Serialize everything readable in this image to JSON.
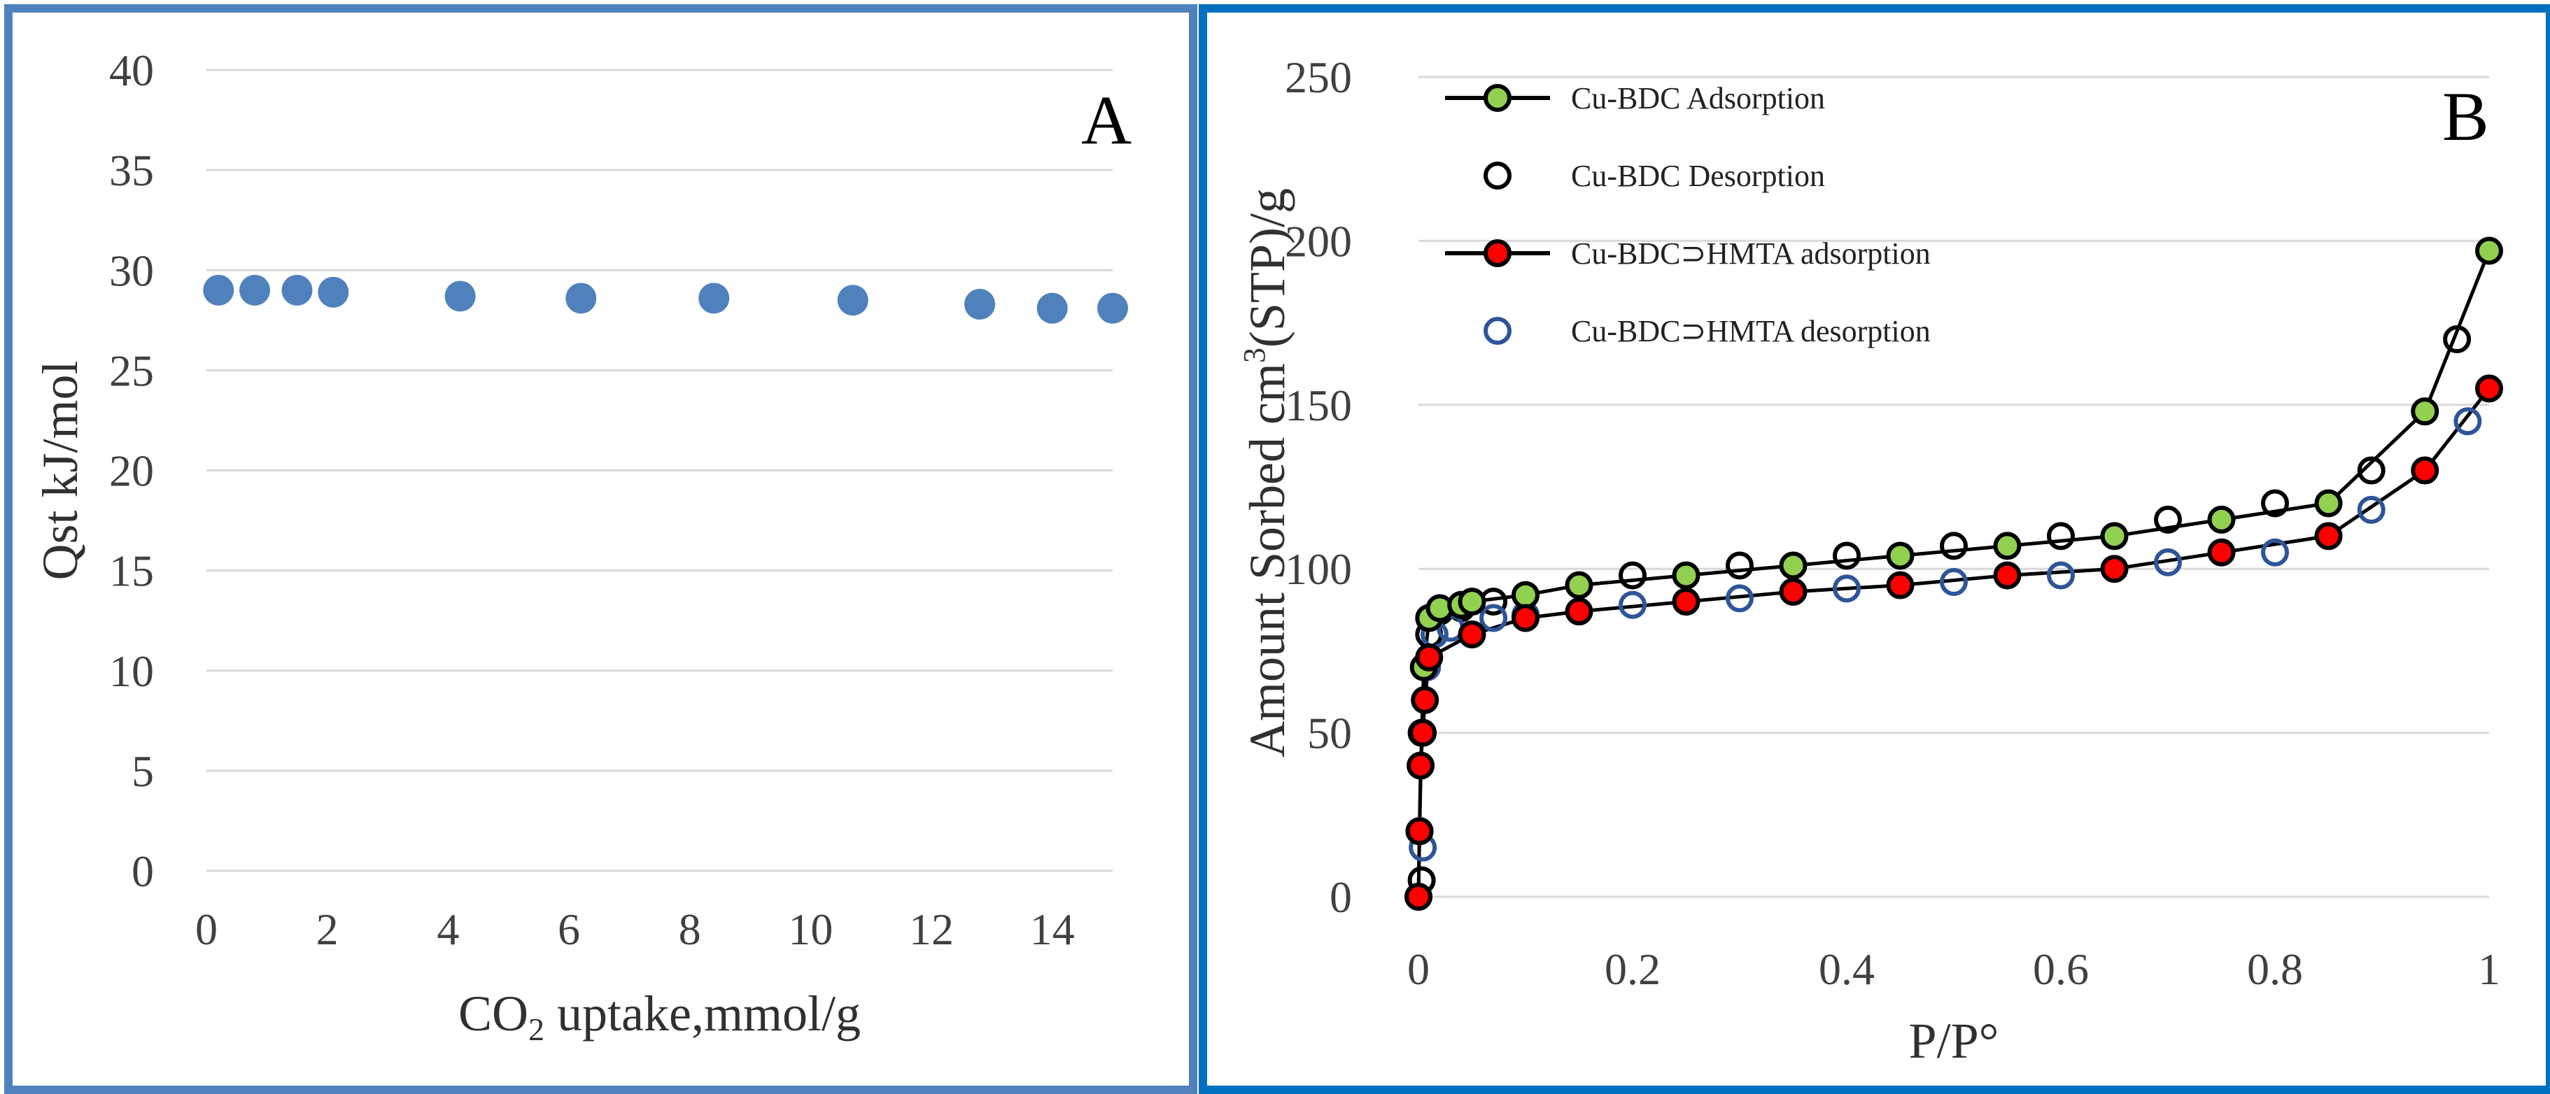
{
  "chart_data": [
    {
      "type": "scatter",
      "panel_label": "A",
      "xlabel": {
        "main": "CO",
        "sub": "2",
        "rest": "  uptake,mmol/g"
      },
      "ylabel": "Qst kJ/mol",
      "xlim": [
        0,
        15
      ],
      "ylim": [
        0,
        40
      ],
      "xticks": [
        "0",
        "2",
        "4",
        "6",
        "8",
        "10",
        "12",
        "14"
      ],
      "yticks": [
        "0",
        "5",
        "10",
        "15",
        "20",
        "25",
        "30",
        "35",
        "40"
      ],
      "grid": "horizontal",
      "colors": {
        "marker": "#4f81bd",
        "grid": "#d9d9d9"
      },
      "series": [
        {
          "x": [
            0.2,
            0.8,
            1.5,
            2.1,
            4.2,
            6.2,
            8.4,
            10.7,
            12.8,
            14.0,
            15.0
          ],
          "y": [
            29.0,
            29.0,
            29.0,
            28.9,
            28.7,
            28.6,
            28.6,
            28.5,
            28.3,
            28.1,
            28.1
          ]
        }
      ]
    },
    {
      "type": "line",
      "panel_label": "B",
      "xlabel": "P/P°",
      "ylabel": {
        "pre": "Amount Sorbed cm",
        "sup": "3",
        "post": "(STP)/g"
      },
      "xlim": [
        0,
        1
      ],
      "ylim": [
        0,
        250
      ],
      "xticks": [
        "0",
        "0.2",
        "0.4",
        "0.6",
        "0.8",
        "1"
      ],
      "yticks": [
        "0",
        "50",
        "100",
        "150",
        "200",
        "250"
      ],
      "grid": "horizontal",
      "legend_position": "top-left",
      "colors": {
        "grid": "#d9d9d9",
        "line": "#000000"
      },
      "series": [
        {
          "name": "Cu-BDC Adsorption",
          "marker": "filled",
          "fill": "#92d050",
          "stroke": "#000000",
          "line": true,
          "x": [
            0.0,
            0.001,
            0.003,
            0.005,
            0.01,
            0.02,
            0.04,
            0.05,
            0.1,
            0.15,
            0.25,
            0.35,
            0.45,
            0.55,
            0.65,
            0.75,
            0.85,
            0.94,
            1.0
          ],
          "y": [
            0,
            20,
            50,
            70,
            85,
            88,
            89,
            90,
            92,
            95,
            98,
            101,
            104,
            107,
            110,
            115,
            120,
            148,
            197
          ]
        },
        {
          "name": "Cu-BDC Desorption",
          "marker": "open",
          "fill": "none",
          "stroke": "#000000",
          "line": false,
          "x": [
            0.97,
            0.89,
            0.8,
            0.7,
            0.6,
            0.5,
            0.4,
            0.3,
            0.2,
            0.07,
            0.04,
            0.02,
            0.01,
            0.003
          ],
          "y": [
            170,
            130,
            120,
            115,
            110,
            107,
            104,
            101,
            98,
            90,
            88,
            87,
            80,
            5
          ]
        },
        {
          "name": "Cu-BDC⊃HMTA adsorption",
          "marker": "filled",
          "fill": "#ff0000",
          "stroke": "#000000",
          "line": true,
          "x": [
            0.0,
            0.001,
            0.002,
            0.004,
            0.006,
            0.01,
            0.05,
            0.1,
            0.15,
            0.25,
            0.35,
            0.45,
            0.55,
            0.65,
            0.75,
            0.85,
            0.94,
            1.0
          ],
          "y": [
            0,
            20,
            40,
            50,
            60,
            73,
            80,
            85,
            87,
            90,
            93,
            95,
            98,
            100,
            105,
            110,
            130,
            155
          ]
        },
        {
          "name": "Cu-BDC⊃HMTA desorption",
          "marker": "open",
          "fill": "none",
          "stroke": "#2e5597",
          "line": false,
          "x": [
            0.98,
            0.89,
            0.8,
            0.7,
            0.6,
            0.5,
            0.4,
            0.3,
            0.2,
            0.1,
            0.07,
            0.03,
            0.015,
            0.008,
            0.004
          ],
          "y": [
            145,
            118,
            105,
            102,
            98,
            96,
            94,
            91,
            89,
            86,
            85,
            82,
            80,
            70,
            15
          ]
        }
      ]
    }
  ]
}
